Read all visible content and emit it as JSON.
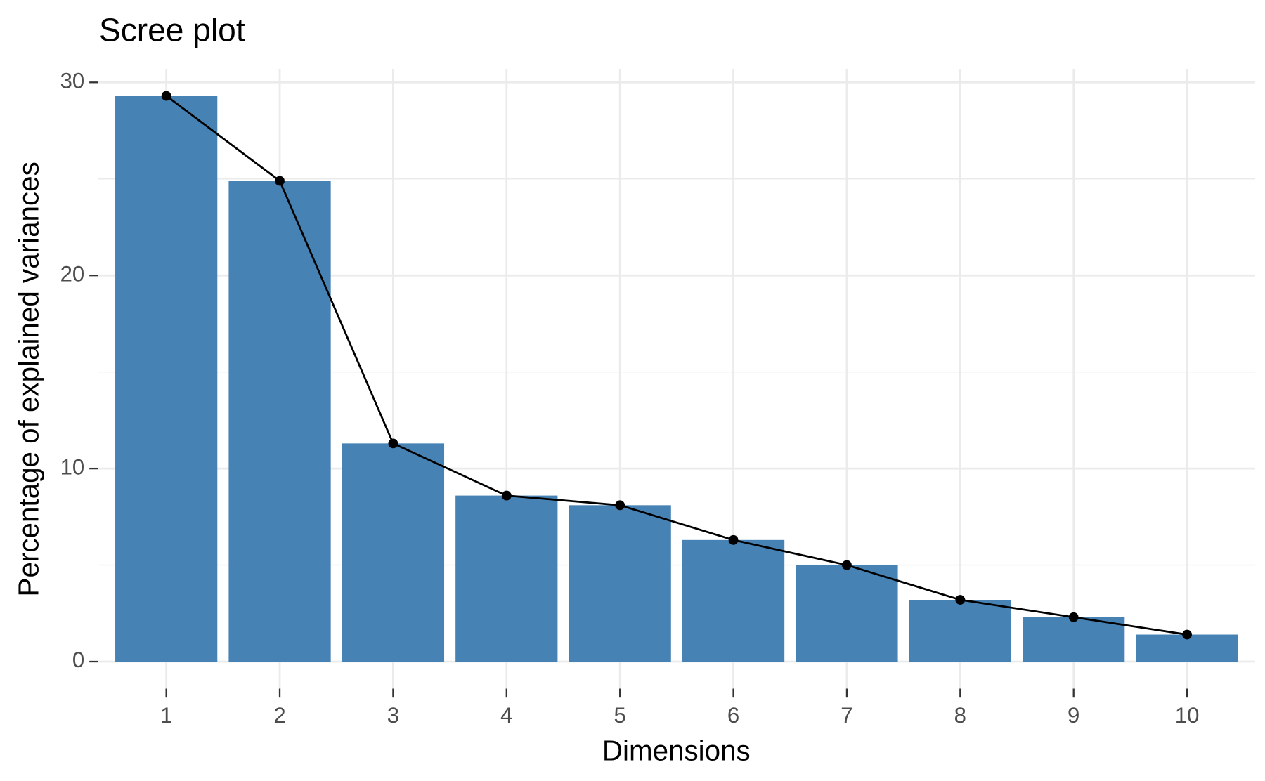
{
  "chart_data": {
    "type": "bar",
    "title": "Scree plot",
    "x_label": "Dimensions",
    "y_label": "Percentage of explained variances",
    "categories": [
      "1",
      "2",
      "3",
      "4",
      "5",
      "6",
      "7",
      "8",
      "9",
      "10"
    ],
    "values": [
      29.3,
      24.9,
      11.3,
      8.6,
      8.1,
      6.3,
      5.0,
      3.2,
      2.3,
      1.4
    ],
    "color": "#4682b4",
    "line_color": "#000000",
    "ylim": [
      -1.4,
      30.7
    ],
    "yticks": [
      0,
      10,
      20,
      30
    ],
    "minor_yticks": [
      5,
      15,
      25
    ],
    "grid": true
  }
}
